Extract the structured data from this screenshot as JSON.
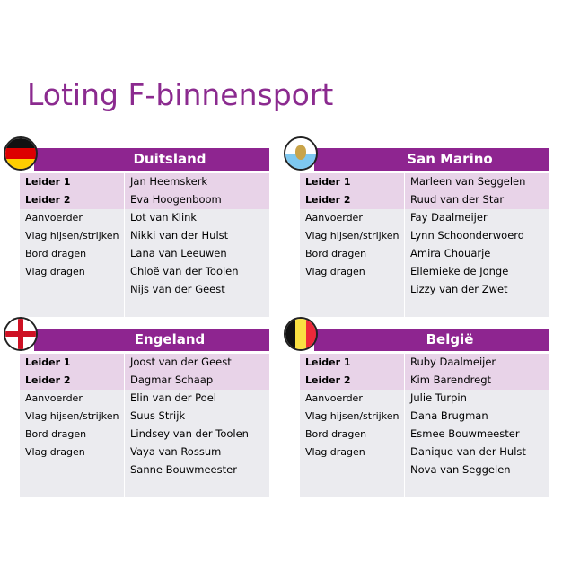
{
  "title": "Loting F-binnensport",
  "roles": [
    "Leider 1",
    "Leider 2",
    "Aanvoerder",
    "Vlag hijsen/strijken",
    "Bord dragen",
    "Vlag dragen",
    "",
    ""
  ],
  "teams": [
    {
      "name": "Duitsland",
      "flag": "germany-flag",
      "members": [
        "Jan Heemskerk",
        "Eva Hoogenboom",
        "Lot van Klink",
        "Nikki van der Hulst",
        "Lana van Leeuwen",
        "Chloë van der Toolen",
        "Nijs van der Geest",
        ""
      ]
    },
    {
      "name": "San Marino",
      "flag": "san-marino-flag",
      "members": [
        "Marleen van Seggelen",
        "Ruud van der Star",
        "Fay Daalmeijer",
        "Lynn Schoonderwoerd",
        "Amira Chouarje",
        "Ellemieke de Jonge",
        "Lizzy van der Zwet",
        ""
      ]
    },
    {
      "name": "Engeland",
      "flag": "england-flag",
      "members": [
        "Joost van der Geest",
        "Dagmar Schaap",
        "Elin van der Poel",
        "Suus Strijk",
        "Lindsey van der Toolen",
        "Vaya van Rossum",
        "Sanne Bouwmeester",
        ""
      ]
    },
    {
      "name": "België",
      "flag": "belgium-flag",
      "members": [
        "Ruby Daalmeijer",
        "Kim Barendregt",
        "Julie Turpin",
        "Dana Brugman",
        "Esmee Bouwmeester",
        "Danique van der Hulst",
        "Nova van Seggelen",
        ""
      ]
    }
  ],
  "colors": {
    "accent": "#8E2590",
    "leader_row": "#E8D3E8",
    "row": "#EBEBEF"
  }
}
